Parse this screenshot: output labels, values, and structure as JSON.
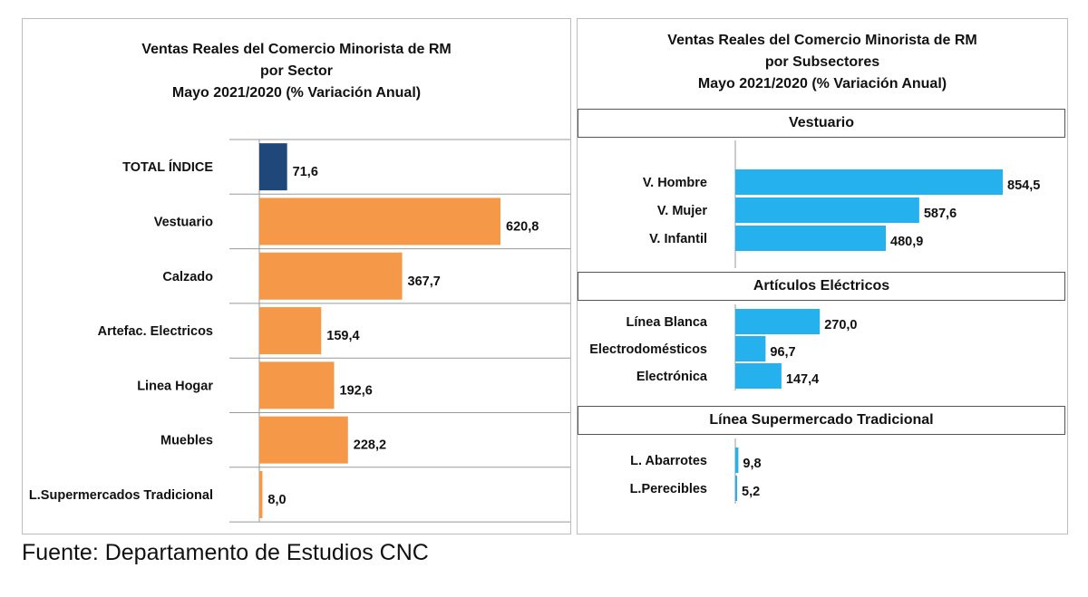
{
  "left": {
    "title_lines": [
      "Ventas Reales del Comercio Minorista de RM",
      "por Sector",
      "Mayo 2021/2020 (% Variación Anual)"
    ]
  },
  "right": {
    "title_lines": [
      "Ventas Reales del Comercio Minorista de RM",
      "por Subsectores",
      "Mayo 2021/2020 (% Variación Anual)"
    ],
    "sections": [
      "Vestuario",
      "Artículos Eléctricos",
      "Línea Supermercado Tradicional"
    ]
  },
  "source": "Fuente: Departamento de Estudios CNC",
  "colors": {
    "total": "#1f477a",
    "sector": "#f59848",
    "subsector": "#25b0ee"
  },
  "chart_data": [
    {
      "type": "bar",
      "orientation": "horizontal",
      "title": "Ventas Reales del Comercio Minorista de RM por Sector Mayo 2021/2020 (% Variación Anual)",
      "categories": [
        "TOTAL ÍNDICE",
        "Vestuario",
        "Calzado",
        "Artefac. Electricos",
        "Linea Hogar",
        "Muebles",
        "L.Supermercados Tradicional"
      ],
      "values": [
        71.6,
        620.8,
        367.7,
        159.4,
        192.6,
        228.2,
        8.0
      ],
      "labels": [
        "71,6",
        "620,8",
        "367,7",
        "159,4",
        "192,6",
        "228,2",
        "8,0"
      ],
      "xlim": [
        0,
        800
      ],
      "grid": "horizontal separators"
    },
    {
      "type": "bar",
      "orientation": "horizontal",
      "title": "Ventas Reales del Comercio Minorista de RM por Subsectores Mayo 2021/2020 (% Variación Anual)",
      "groups": [
        {
          "name": "Vestuario",
          "categories": [
            "V. Hombre",
            "V. Mujer",
            "V. Infantil"
          ],
          "values": [
            854.5,
            587.6,
            480.9
          ],
          "labels": [
            "854,5",
            "587,6",
            "480,9"
          ]
        },
        {
          "name": "Artículos Eléctricos",
          "categories": [
            "Línea Blanca",
            "Electrodomésticos",
            "Electrónica"
          ],
          "values": [
            270.0,
            96.7,
            147.4
          ],
          "labels": [
            "270,0",
            "96,7",
            "147,4"
          ]
        },
        {
          "name": "Línea Supermercado Tradicional",
          "categories": [
            "L. Abarrotes",
            "L.Perecibles"
          ],
          "values": [
            9.8,
            5.2
          ],
          "labels": [
            "9,8",
            "5,2"
          ]
        }
      ]
    }
  ]
}
